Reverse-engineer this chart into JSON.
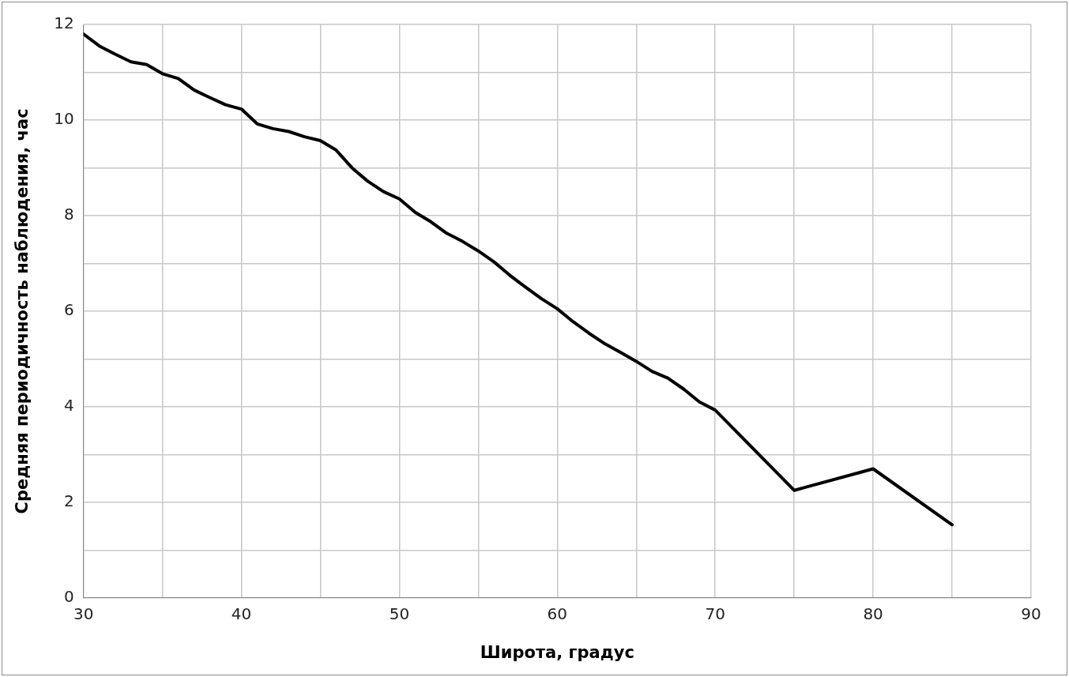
{
  "chart_data": {
    "type": "line",
    "xlabel": "Широта, градус",
    "ylabel": "Средняя периодичность наблюдения, час",
    "x": [
      30,
      31,
      32,
      33,
      34,
      35,
      36,
      37,
      38,
      39,
      40,
      41,
      42,
      43,
      44,
      45,
      46,
      47,
      48,
      49,
      50,
      51,
      52,
      53,
      54,
      55,
      56,
      57,
      58,
      59,
      60,
      61,
      62,
      63,
      64,
      65,
      66,
      67,
      68,
      69,
      70,
      75,
      80,
      85
    ],
    "series": [
      {
        "color": "#000000",
        "values": [
          11.8,
          11.55,
          11.38,
          11.22,
          11.16,
          10.97,
          10.87,
          10.63,
          10.47,
          10.32,
          10.23,
          9.92,
          9.82,
          9.76,
          9.65,
          9.57,
          9.37,
          9.0,
          8.72,
          8.5,
          8.35,
          8.07,
          7.87,
          7.63,
          7.46,
          7.26,
          7.03,
          6.75,
          6.5,
          6.26,
          6.05,
          5.78,
          5.54,
          5.32,
          5.14,
          4.95,
          4.74,
          4.6,
          4.37,
          4.1,
          3.93,
          2.25,
          2.7,
          1.53
        ]
      }
    ],
    "xlim": [
      30,
      90
    ],
    "ylim": [
      0,
      12
    ],
    "xticks": [
      30,
      {
        "value": 35,
        "label": null
      },
      40,
      {
        "value": 45,
        "label": null
      },
      50,
      {
        "value": 55,
        "label": null
      },
      60,
      {
        "value": 65,
        "label": null
      },
      70,
      {
        "value": 75,
        "label": null
      },
      80,
      {
        "value": 85,
        "label": null
      },
      90
    ],
    "yticks": [
      0,
      {
        "value": 1,
        "label": null
      },
      2,
      {
        "value": 3,
        "label": null
      },
      4,
      {
        "value": 5,
        "label": null
      },
      6,
      {
        "value": 7,
        "label": null
      },
      8,
      {
        "value": 9,
        "label": null
      },
      10,
      {
        "value": 11,
        "label": null
      },
      12
    ],
    "grid": true,
    "legend": false,
    "marker": "none",
    "line_style": "solid"
  }
}
